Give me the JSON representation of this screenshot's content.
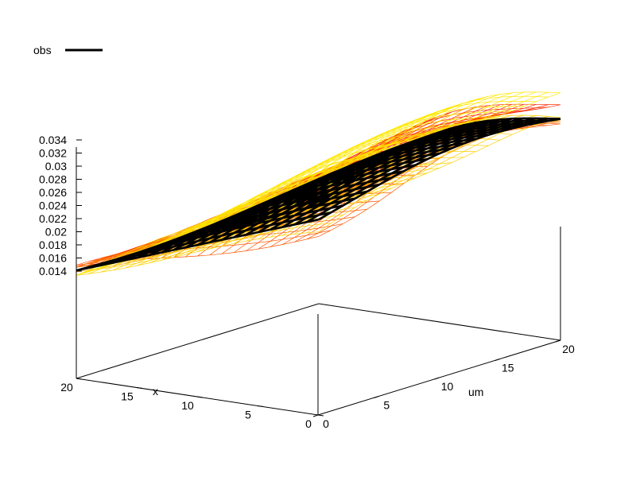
{
  "chart_data": {
    "type": "surface",
    "title": "",
    "xlabel": "x",
    "ylabel": "um",
    "zlabel": "",
    "xlim": [
      0,
      20
    ],
    "ylim": [
      0,
      20
    ],
    "zlim": [
      0.014,
      0.034
    ],
    "x_ticks": [
      "0",
      "5",
      "10",
      "15",
      "20"
    ],
    "y_ticks": [
      "0",
      "5",
      "10",
      "15",
      "20"
    ],
    "z_ticks": [
      "0.014",
      "0.016",
      "0.018",
      "0.02",
      "0.022",
      "0.024",
      "0.026",
      "0.028",
      "0.03",
      "0.032",
      "0.034"
    ],
    "legend": {
      "position": "top-left",
      "entries": [
        {
          "name": "obs",
          "color": "#000000"
        }
      ]
    },
    "series": [
      {
        "name": "obs",
        "color": "#000000",
        "grid_size": 21,
        "corners": {
          "x0_um0": 0.0272,
          "x20_um0": 0.0141,
          "x0_um20": 0.034,
          "x20_um20": 0.0156
        }
      }
    ],
    "ensemble_colors": [
      "#ff2a00",
      "#ff5500",
      "#ff8000",
      "#ffaa00",
      "#ffd000",
      "#ffe800"
    ]
  }
}
